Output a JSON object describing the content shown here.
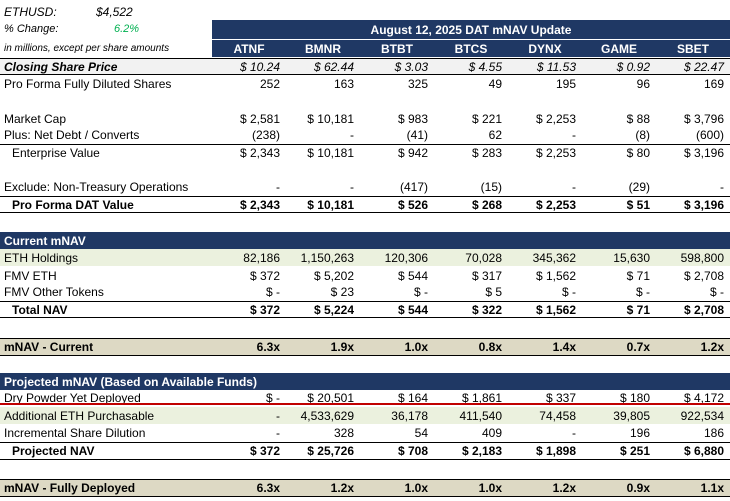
{
  "top": {
    "ticker_label": "ETHUSD:",
    "ticker_value": "$4,522",
    "change_label": "% Change:",
    "change_value": "6.2%",
    "note": "in millions, except per share amounts",
    "title": "August 12, 2025 DAT mNAV Update"
  },
  "columns": [
    "ATNF",
    "BMNR",
    "BTBT",
    "BTCS",
    "DYNX",
    "GAME",
    "SBET"
  ],
  "rows": {
    "price": {
      "label": "Closing Share Price",
      "values": [
        "$ 10.24",
        "$ 62.44",
        "$ 3.03",
        "$ 4.55",
        "$ 11.53",
        "$ 0.92",
        "$ 22.47"
      ]
    },
    "shares": {
      "label": "Pro Forma Fully Diluted Shares",
      "values": [
        "252",
        "163",
        "325",
        "49",
        "195",
        "96",
        "169"
      ]
    },
    "mcap": {
      "label": "Market Cap",
      "values": [
        "$ 2,581",
        "$ 10,181",
        "$ 983",
        "$ 221",
        "$ 2,253",
        "$ 88",
        "$ 3,796"
      ]
    },
    "debt": {
      "label": "Plus: Net Debt / Converts",
      "values": [
        "(238)",
        "-",
        "(41)",
        "62",
        "-",
        "(8)",
        "(600)"
      ]
    },
    "ev": {
      "label": "Enterprise Value",
      "values": [
        "$ 2,343",
        "$ 10,181",
        "$ 942",
        "$ 283",
        "$ 2,253",
        "$ 80",
        "$ 3,196"
      ]
    },
    "exclude": {
      "label": "Exclude: Non-Treasury Operations",
      "values": [
        "-",
        "-",
        "(417)",
        "(15)",
        "-",
        "(29)",
        "-"
      ]
    },
    "dat": {
      "label": "Pro Forma DAT Value",
      "values": [
        "$ 2,343",
        "$ 10,181",
        "$ 526",
        "$ 268",
        "$ 2,253",
        "$ 51",
        "$ 3,196"
      ]
    },
    "current_header": {
      "label": "Current mNAV"
    },
    "eth_holdings": {
      "label": "ETH Holdings",
      "values": [
        "82,186",
        "1,150,263",
        "120,306",
        "70,028",
        "345,362",
        "15,630",
        "598,800"
      ]
    },
    "fmv_eth": {
      "label": "FMV ETH",
      "values": [
        "$ 372",
        "$ 5,202",
        "$ 544",
        "$ 317",
        "$ 1,562",
        "$ 71",
        "$ 2,708"
      ]
    },
    "fmv_other": {
      "label": "FMV Other Tokens",
      "values": [
        "$ -",
        "$ 23",
        "$ -",
        "$ 5",
        "$ -",
        "$ -",
        "$ -"
      ]
    },
    "total_nav": {
      "label": "Total NAV",
      "values": [
        "$ 372",
        "$ 5,224",
        "$ 544",
        "$ 322",
        "$ 1,562",
        "$ 71",
        "$ 2,708"
      ]
    },
    "mnav_current": {
      "label": "mNAV - Current",
      "values": [
        "6.3x",
        "1.9x",
        "1.0x",
        "0.8x",
        "1.4x",
        "0.7x",
        "1.2x"
      ]
    },
    "projected_header": {
      "label": "Projected mNAV (Based on Available Funds)"
    },
    "dry_powder": {
      "label": "Dry Powder Yet Deployed",
      "values": [
        "$ -",
        "$ 20,501",
        "$ 164",
        "$ 1,861",
        "$ 337",
        "$ 180",
        "$ 4,172"
      ]
    },
    "add_eth": {
      "label": "Additional ETH Purchasable",
      "values": [
        "-",
        "4,533,629",
        "36,178",
        "411,540",
        "74,458",
        "39,805",
        "922,534"
      ]
    },
    "dilution": {
      "label": "Incremental Share Dilution",
      "values": [
        "-",
        "328",
        "54",
        "409",
        "-",
        "196",
        "186"
      ]
    },
    "proj_nav": {
      "label": "Projected NAV",
      "values": [
        "$ 372",
        "$ 25,726",
        "$ 708",
        "$ 2,183",
        "$ 1,898",
        "$ 251",
        "$ 6,880"
      ]
    },
    "mnav_full": {
      "label": "mNAV - Fully Deployed",
      "values": [
        "6.3x",
        "1.2x",
        "1.0x",
        "1.0x",
        "1.2x",
        "0.9x",
        "1.1x"
      ]
    }
  }
}
